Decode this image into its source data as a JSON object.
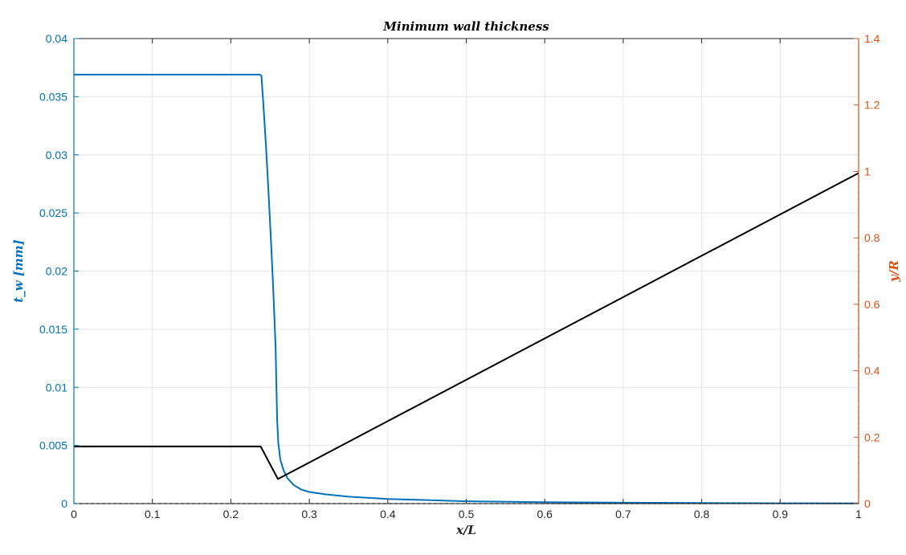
{
  "chart_data": {
    "type": "line",
    "title": "Minimum wall thickness",
    "xlabel": "x/L",
    "ylabel_left": "t_w [mm]",
    "ylabel_right": "y/R",
    "xlim": [
      0,
      1
    ],
    "ylim_left": [
      0,
      0.04
    ],
    "ylim_right": [
      0,
      1.4
    ],
    "grid": true,
    "x_ticks": [
      "0",
      "0.1",
      "0.2",
      "0.3",
      "0.4",
      "0.5",
      "0.6",
      "0.7",
      "0.8",
      "0.9",
      "1"
    ],
    "y_left_ticks": [
      "0",
      "0.005",
      "0.01",
      "0.015",
      "0.02",
      "0.025",
      "0.03",
      "0.035",
      "0.04"
    ],
    "y_right_ticks": [
      "0",
      "0.2",
      "0.4",
      "0.6",
      "0.8",
      "1",
      "1.2",
      "1.4"
    ],
    "colors": {
      "left_axis": "#0072BD",
      "right_axis": "#D95319",
      "profile": "#000000",
      "grid": "#E6E6E6"
    },
    "series": [
      {
        "axis": "left",
        "color": "#0072BD",
        "x": [
          0,
          0.237,
          0.239,
          0.242,
          0.245,
          0.248,
          0.251,
          0.254,
          0.257,
          0.259,
          0.2605,
          0.263,
          0.267,
          0.272,
          0.28,
          0.29,
          0.3,
          0.32,
          0.35,
          0.4,
          0.45,
          0.5,
          0.6,
          0.7,
          0.8,
          0.9,
          1.0
        ],
        "y": [
          0.0369,
          0.0369,
          0.0368,
          0.0338,
          0.0305,
          0.0268,
          0.0228,
          0.0185,
          0.0135,
          0.0072,
          0.0052,
          0.0038,
          0.0029,
          0.0022,
          0.0016,
          0.0012,
          0.001,
          0.0008,
          0.0006,
          0.0004,
          0.0003,
          0.0002,
          0.00012,
          8e-05,
          5e-05,
          3e-05,
          2e-05
        ]
      },
      {
        "axis": "right",
        "color": "#000000",
        "x": [
          0,
          0.238,
          0.26,
          1.0
        ],
        "y": [
          0.172,
          0.172,
          0.074,
          0.995
        ]
      },
      {
        "axis": "right",
        "color": "#D95319",
        "style": "dashed",
        "x": [
          1.0,
          1.0
        ],
        "y": [
          0,
          0.995
        ]
      },
      {
        "axis": "right",
        "color": "#000000",
        "style": "dashed",
        "x": [
          0,
          1.0
        ],
        "y": [
          0,
          0
        ]
      }
    ]
  }
}
